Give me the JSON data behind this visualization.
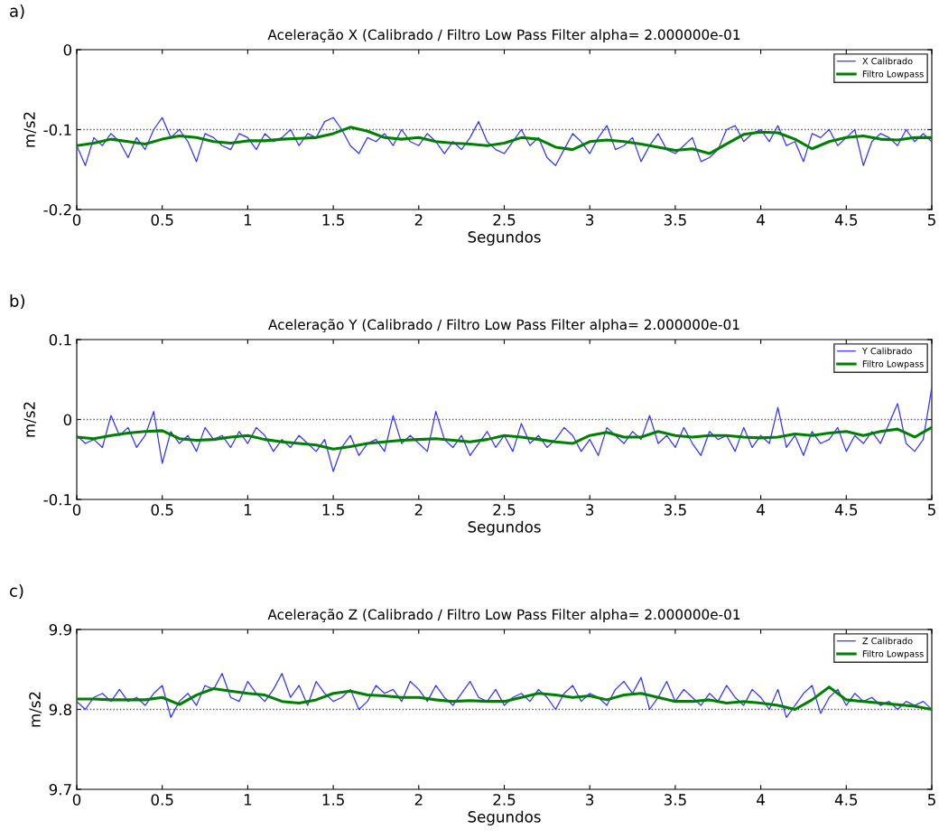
{
  "chart_data": [
    {
      "type": "line",
      "title": "Aceleração X (Calibrado / Filtro Low Pass Filter alpha= 2.000000e-01",
      "xlabel": "Segundos",
      "ylabel": "m/s2",
      "annotations": [
        "a)"
      ],
      "xlim": [
        0,
        5
      ],
      "xticks": [
        0,
        0.5,
        1,
        1.5,
        2,
        2.5,
        3,
        3.5,
        4,
        4.5,
        5
      ],
      "ylim": [
        -0.2,
        0
      ],
      "yticks": [
        -0.2,
        -0.1,
        0
      ],
      "legend": "top right",
      "ref_lines": [
        {
          "axis": "y",
          "value": -0.1,
          "color": "#555555",
          "line_style": "dotted"
        }
      ],
      "series": [
        {
          "name": "X Calibrado",
          "color": "#3333ff",
          "line_style": "solid",
          "x": [
            0,
            0.05,
            0.1,
            0.15,
            0.2,
            0.25,
            0.3,
            0.35,
            0.4,
            0.45,
            0.5,
            0.55,
            0.6,
            0.65,
            0.7,
            0.75,
            0.8,
            0.85,
            0.9,
            0.95,
            1,
            1.05,
            1.1,
            1.15,
            1.2,
            1.25,
            1.3,
            1.35,
            1.4,
            1.45,
            1.5,
            1.55,
            1.6,
            1.65,
            1.7,
            1.75,
            1.8,
            1.85,
            1.9,
            1.95,
            2,
            2.05,
            2.1,
            2.15,
            2.2,
            2.25,
            2.3,
            2.35,
            2.4,
            2.45,
            2.5,
            2.55,
            2.6,
            2.65,
            2.7,
            2.75,
            2.8,
            2.85,
            2.9,
            2.95,
            3,
            3.05,
            3.1,
            3.15,
            3.2,
            3.25,
            3.3,
            3.35,
            3.4,
            3.45,
            3.5,
            3.55,
            3.6,
            3.65,
            3.7,
            3.75,
            3.8,
            3.85,
            3.9,
            3.95,
            4,
            4.05,
            4.1,
            4.15,
            4.2,
            4.25,
            4.3,
            4.35,
            4.4,
            4.45,
            4.5,
            4.55,
            4.6,
            4.65,
            4.7,
            4.75,
            4.8,
            4.85,
            4.9,
            4.95,
            5
          ],
          "values": [
            -0.12,
            -0.145,
            -0.11,
            -0.12,
            -0.105,
            -0.115,
            -0.135,
            -0.11,
            -0.125,
            -0.1,
            -0.085,
            -0.11,
            -0.1,
            -0.115,
            -0.14,
            -0.105,
            -0.11,
            -0.12,
            -0.125,
            -0.105,
            -0.11,
            -0.125,
            -0.105,
            -0.115,
            -0.11,
            -0.1,
            -0.12,
            -0.105,
            -0.11,
            -0.09,
            -0.085,
            -0.1,
            -0.12,
            -0.13,
            -0.11,
            -0.115,
            -0.105,
            -0.12,
            -0.1,
            -0.115,
            -0.12,
            -0.105,
            -0.115,
            -0.13,
            -0.115,
            -0.125,
            -0.11,
            -0.09,
            -0.115,
            -0.125,
            -0.13,
            -0.115,
            -0.1,
            -0.12,
            -0.11,
            -0.135,
            -0.145,
            -0.125,
            -0.105,
            -0.115,
            -0.13,
            -0.11,
            -0.095,
            -0.125,
            -0.12,
            -0.11,
            -0.14,
            -0.12,
            -0.105,
            -0.125,
            -0.13,
            -0.12,
            -0.11,
            -0.14,
            -0.135,
            -0.125,
            -0.1,
            -0.095,
            -0.115,
            -0.105,
            -0.1,
            -0.115,
            -0.095,
            -0.12,
            -0.115,
            -0.14,
            -0.105,
            -0.11,
            -0.1,
            -0.12,
            -0.11,
            -0.1,
            -0.145,
            -0.115,
            -0.105,
            -0.11,
            -0.12,
            -0.1,
            -0.115,
            -0.105,
            -0.115
          ]
        },
        {
          "name": "Filtro Lowpass",
          "color": "#008000",
          "line_style": "solid",
          "x": [
            0,
            0.1,
            0.2,
            0.3,
            0.4,
            0.5,
            0.6,
            0.7,
            0.8,
            0.9,
            1,
            1.1,
            1.2,
            1.3,
            1.4,
            1.5,
            1.6,
            1.7,
            1.8,
            1.9,
            2,
            2.1,
            2.2,
            2.3,
            2.4,
            2.5,
            2.6,
            2.7,
            2.8,
            2.9,
            3,
            3.1,
            3.2,
            3.3,
            3.4,
            3.5,
            3.6,
            3.7,
            3.8,
            3.9,
            4,
            4.1,
            4.2,
            4.3,
            4.4,
            4.5,
            4.6,
            4.7,
            4.8,
            4.9,
            5
          ],
          "values": [
            -0.12,
            -0.117,
            -0.112,
            -0.115,
            -0.118,
            -0.112,
            -0.108,
            -0.11,
            -0.115,
            -0.117,
            -0.114,
            -0.114,
            -0.112,
            -0.111,
            -0.11,
            -0.105,
            -0.097,
            -0.102,
            -0.11,
            -0.112,
            -0.11,
            -0.115,
            -0.117,
            -0.118,
            -0.12,
            -0.117,
            -0.11,
            -0.112,
            -0.122,
            -0.125,
            -0.115,
            -0.113,
            -0.115,
            -0.118,
            -0.122,
            -0.126,
            -0.124,
            -0.13,
            -0.118,
            -0.106,
            -0.103,
            -0.104,
            -0.112,
            -0.124,
            -0.115,
            -0.11,
            -0.108,
            -0.112,
            -0.113,
            -0.11,
            -0.11
          ]
        }
      ]
    },
    {
      "type": "line",
      "title": "Aceleração Y (Calibrado / Filtro Low Pass Filter alpha= 2.000000e-01",
      "xlabel": "Segundos",
      "ylabel": "m/s2",
      "annotations": [
        "b)"
      ],
      "xlim": [
        0,
        5
      ],
      "xticks": [
        0,
        0.5,
        1,
        1.5,
        2,
        2.5,
        3,
        3.5,
        4,
        4.5,
        5
      ],
      "ylim": [
        -0.1,
        0.1
      ],
      "yticks": [
        -0.1,
        0,
        0.1
      ],
      "legend": "top right",
      "ref_lines": [
        {
          "axis": "y",
          "value": 0,
          "color": "#555555",
          "line_style": "dotted"
        }
      ],
      "series": [
        {
          "name": "Y Calibrado",
          "color": "#3333ff",
          "line_style": "solid",
          "x": [
            0,
            0.05,
            0.1,
            0.15,
            0.2,
            0.25,
            0.3,
            0.35,
            0.4,
            0.45,
            0.5,
            0.55,
            0.6,
            0.65,
            0.7,
            0.75,
            0.8,
            0.85,
            0.9,
            0.95,
            1,
            1.05,
            1.1,
            1.15,
            1.2,
            1.25,
            1.3,
            1.35,
            1.4,
            1.45,
            1.5,
            1.55,
            1.6,
            1.65,
            1.7,
            1.75,
            1.8,
            1.85,
            1.9,
            1.95,
            2,
            2.05,
            2.1,
            2.15,
            2.2,
            2.25,
            2.3,
            2.35,
            2.4,
            2.45,
            2.5,
            2.55,
            2.6,
            2.65,
            2.7,
            2.75,
            2.8,
            2.85,
            2.9,
            2.95,
            3,
            3.05,
            3.1,
            3.15,
            3.2,
            3.25,
            3.3,
            3.35,
            3.4,
            3.45,
            3.5,
            3.55,
            3.6,
            3.65,
            3.7,
            3.75,
            3.8,
            3.85,
            3.9,
            3.95,
            4,
            4.05,
            4.1,
            4.15,
            4.2,
            4.25,
            4.3,
            4.35,
            4.4,
            4.45,
            4.5,
            4.55,
            4.6,
            4.65,
            4.7,
            4.75,
            4.8,
            4.85,
            4.9,
            4.95,
            5
          ],
          "values": [
            -0.02,
            -0.03,
            -0.025,
            -0.035,
            0.005,
            -0.02,
            -0.01,
            -0.035,
            -0.02,
            0.01,
            -0.055,
            -0.015,
            -0.03,
            -0.02,
            -0.04,
            -0.01,
            -0.025,
            -0.02,
            -0.035,
            -0.015,
            -0.03,
            -0.01,
            -0.02,
            -0.04,
            -0.025,
            -0.035,
            -0.02,
            -0.03,
            -0.04,
            -0.025,
            -0.065,
            -0.035,
            -0.02,
            -0.045,
            -0.03,
            -0.025,
            -0.04,
            0.005,
            -0.03,
            -0.02,
            -0.03,
            -0.04,
            0.01,
            -0.025,
            -0.035,
            -0.02,
            -0.045,
            -0.03,
            -0.015,
            -0.035,
            -0.02,
            -0.04,
            -0.005,
            -0.03,
            -0.02,
            -0.035,
            -0.025,
            -0.01,
            -0.02,
            -0.04,
            -0.025,
            -0.045,
            -0.01,
            -0.02,
            -0.03,
            -0.015,
            -0.025,
            0.005,
            -0.03,
            -0.02,
            -0.035,
            -0.01,
            -0.03,
            -0.045,
            -0.015,
            -0.025,
            -0.02,
            -0.04,
            -0.01,
            -0.035,
            -0.02,
            -0.03,
            0.015,
            -0.035,
            -0.02,
            -0.045,
            -0.015,
            -0.03,
            -0.025,
            -0.01,
            -0.04,
            -0.02,
            -0.03,
            -0.015,
            -0.03,
            -0.005,
            0.02,
            -0.03,
            -0.04,
            -0.025,
            0.04
          ]
        },
        {
          "name": "Filtro Lowpass",
          "color": "#008000",
          "line_style": "solid",
          "x": [
            0,
            0.1,
            0.2,
            0.3,
            0.4,
            0.5,
            0.6,
            0.7,
            0.8,
            0.9,
            1,
            1.1,
            1.2,
            1.3,
            1.4,
            1.5,
            1.6,
            1.7,
            1.8,
            1.9,
            2,
            2.1,
            2.2,
            2.3,
            2.4,
            2.5,
            2.6,
            2.7,
            2.8,
            2.9,
            3,
            3.1,
            3.2,
            3.3,
            3.4,
            3.5,
            3.6,
            3.7,
            3.8,
            3.9,
            4,
            4.1,
            4.2,
            4.3,
            4.4,
            4.5,
            4.6,
            4.7,
            4.8,
            4.9,
            5
          ],
          "values": [
            -0.022,
            -0.024,
            -0.02,
            -0.017,
            -0.015,
            -0.014,
            -0.024,
            -0.026,
            -0.025,
            -0.022,
            -0.02,
            -0.025,
            -0.028,
            -0.03,
            -0.032,
            -0.037,
            -0.034,
            -0.03,
            -0.028,
            -0.026,
            -0.025,
            -0.024,
            -0.026,
            -0.028,
            -0.025,
            -0.02,
            -0.022,
            -0.025,
            -0.028,
            -0.03,
            -0.02,
            -0.016,
            -0.022,
            -0.022,
            -0.015,
            -0.02,
            -0.022,
            -0.02,
            -0.02,
            -0.022,
            -0.023,
            -0.022,
            -0.018,
            -0.02,
            -0.017,
            -0.015,
            -0.02,
            -0.015,
            -0.012,
            -0.022,
            -0.01
          ]
        }
      ]
    },
    {
      "type": "line",
      "title": "Aceleração Z (Calibrado / Filtro Low Pass Filter alpha= 2.000000e-01",
      "xlabel": "Segundos",
      "ylabel": "m/s2",
      "annotations": [
        "c)"
      ],
      "xlim": [
        0,
        5
      ],
      "xticks": [
        0,
        0.5,
        1,
        1.5,
        2,
        2.5,
        3,
        3.5,
        4,
        4.5,
        5
      ],
      "ylim": [
        9.7,
        9.9
      ],
      "yticks": [
        9.7,
        9.8,
        9.9
      ],
      "legend": "top right",
      "ref_lines": [
        {
          "axis": "y",
          "value": 9.8,
          "color": "#555555",
          "line_style": "dotted"
        }
      ],
      "series": [
        {
          "name": "Z Calibrado",
          "color": "#3333ff",
          "line_style": "solid",
          "x": [
            0,
            0.05,
            0.1,
            0.15,
            0.2,
            0.25,
            0.3,
            0.35,
            0.4,
            0.45,
            0.5,
            0.55,
            0.6,
            0.65,
            0.7,
            0.75,
            0.8,
            0.85,
            0.9,
            0.95,
            1,
            1.05,
            1.1,
            1.15,
            1.2,
            1.25,
            1.3,
            1.35,
            1.4,
            1.45,
            1.5,
            1.55,
            1.6,
            1.65,
            1.7,
            1.75,
            1.8,
            1.85,
            1.9,
            1.95,
            2,
            2.05,
            2.1,
            2.15,
            2.2,
            2.25,
            2.3,
            2.35,
            2.4,
            2.45,
            2.5,
            2.55,
            2.6,
            2.65,
            2.7,
            2.75,
            2.8,
            2.85,
            2.9,
            2.95,
            3,
            3.05,
            3.1,
            3.15,
            3.2,
            3.25,
            3.3,
            3.35,
            3.4,
            3.45,
            3.5,
            3.55,
            3.6,
            3.65,
            3.7,
            3.75,
            3.8,
            3.85,
            3.9,
            3.95,
            4,
            4.05,
            4.1,
            4.15,
            4.2,
            4.25,
            4.3,
            4.35,
            4.4,
            4.45,
            4.5,
            4.55,
            4.6,
            4.65,
            4.7,
            4.75,
            4.8,
            4.85,
            4.9,
            4.95,
            5
          ],
          "values": [
            9.81,
            9.8,
            9.815,
            9.82,
            9.81,
            9.825,
            9.81,
            9.815,
            9.805,
            9.82,
            9.83,
            9.79,
            9.81,
            9.82,
            9.805,
            9.83,
            9.825,
            9.845,
            9.815,
            9.81,
            9.835,
            9.82,
            9.81,
            9.825,
            9.845,
            9.815,
            9.83,
            9.805,
            9.835,
            9.82,
            9.81,
            9.815,
            9.825,
            9.8,
            9.81,
            9.83,
            9.82,
            9.825,
            9.81,
            9.835,
            9.825,
            9.81,
            9.83,
            9.815,
            9.805,
            9.82,
            9.835,
            9.815,
            9.81,
            9.825,
            9.805,
            9.815,
            9.82,
            9.81,
            9.825,
            9.815,
            9.8,
            9.82,
            9.83,
            9.81,
            9.82,
            9.815,
            9.805,
            9.825,
            9.835,
            9.82,
            9.84,
            9.8,
            9.815,
            9.835,
            9.81,
            9.825,
            9.815,
            9.805,
            9.82,
            9.81,
            9.83,
            9.815,
            9.805,
            9.825,
            9.815,
            9.8,
            9.825,
            9.79,
            9.805,
            9.82,
            9.83,
            9.795,
            9.815,
            9.825,
            9.805,
            9.82,
            9.81,
            9.815,
            9.805,
            9.81,
            9.8,
            9.81,
            9.805,
            9.81,
            9.8
          ]
        },
        {
          "name": "Filtro Lowpass",
          "color": "#008000",
          "line_style": "solid",
          "x": [
            0,
            0.1,
            0.2,
            0.3,
            0.4,
            0.5,
            0.6,
            0.7,
            0.8,
            0.9,
            1,
            1.1,
            1.2,
            1.3,
            1.4,
            1.5,
            1.6,
            1.7,
            1.8,
            1.9,
            2,
            2.1,
            2.2,
            2.3,
            2.4,
            2.5,
            2.6,
            2.7,
            2.8,
            2.9,
            3,
            3.1,
            3.2,
            3.3,
            3.4,
            3.5,
            3.6,
            3.7,
            3.8,
            3.9,
            4,
            4.1,
            4.2,
            4.3,
            4.4,
            4.5,
            4.6,
            4.7,
            4.8,
            4.9,
            5
          ],
          "values": [
            9.813,
            9.813,
            9.812,
            9.812,
            9.812,
            9.815,
            9.806,
            9.818,
            9.826,
            9.823,
            9.82,
            9.818,
            9.81,
            9.808,
            9.812,
            9.82,
            9.823,
            9.818,
            9.817,
            9.815,
            9.815,
            9.812,
            9.81,
            9.811,
            9.81,
            9.81,
            9.815,
            9.82,
            9.818,
            9.815,
            9.817,
            9.812,
            9.818,
            9.82,
            9.815,
            9.81,
            9.81,
            9.812,
            9.808,
            9.81,
            9.808,
            9.805,
            9.8,
            9.812,
            9.828,
            9.812,
            9.81,
            9.808,
            9.806,
            9.804,
            9.8
          ]
        }
      ]
    }
  ]
}
